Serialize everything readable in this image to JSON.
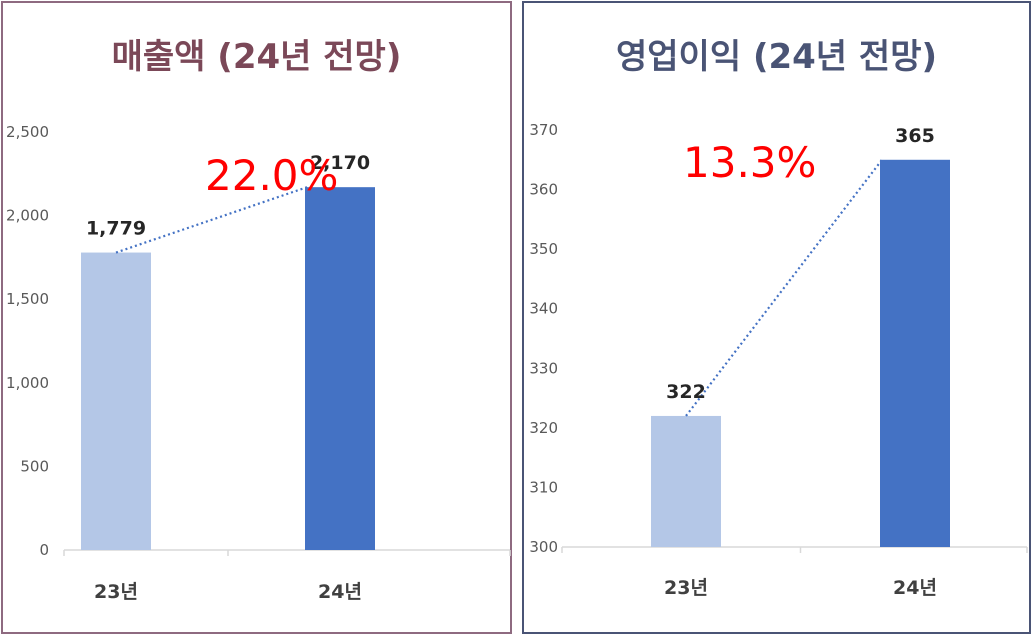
{
  "chart_data": [
    {
      "type": "bar",
      "title": "매출액 (24년 전망)",
      "categories": [
        "23년",
        "24년"
      ],
      "values": [
        1779,
        2170
      ],
      "data_labels": [
        "1,779",
        "2,170"
      ],
      "yticks": [
        "0",
        "500",
        "1,000",
        "1,500",
        "2,000",
        "2,500"
      ],
      "ylim": [
        0,
        2500
      ],
      "growth_label": "22.0%",
      "grid": false,
      "colors": {
        "title": "#7b4858",
        "bars": [
          "#b4c7e7",
          "#4472c4"
        ],
        "trend": "#4472c4",
        "growth": "#ff0000"
      }
    },
    {
      "type": "bar",
      "title": "영업이익 (24년 전망)",
      "categories": [
        "23년",
        "24년"
      ],
      "values": [
        322,
        365
      ],
      "data_labels": [
        "322",
        "365"
      ],
      "yticks": [
        "300",
        "310",
        "320",
        "330",
        "340",
        "350",
        "360",
        "370"
      ],
      "ylim": [
        300,
        370
      ],
      "growth_label": "13.3%",
      "grid": false,
      "colors": {
        "title": "#4a5475",
        "bars": [
          "#b4c7e7",
          "#4472c4"
        ],
        "trend": "#4472c4",
        "growth": "#ff0000"
      }
    }
  ]
}
